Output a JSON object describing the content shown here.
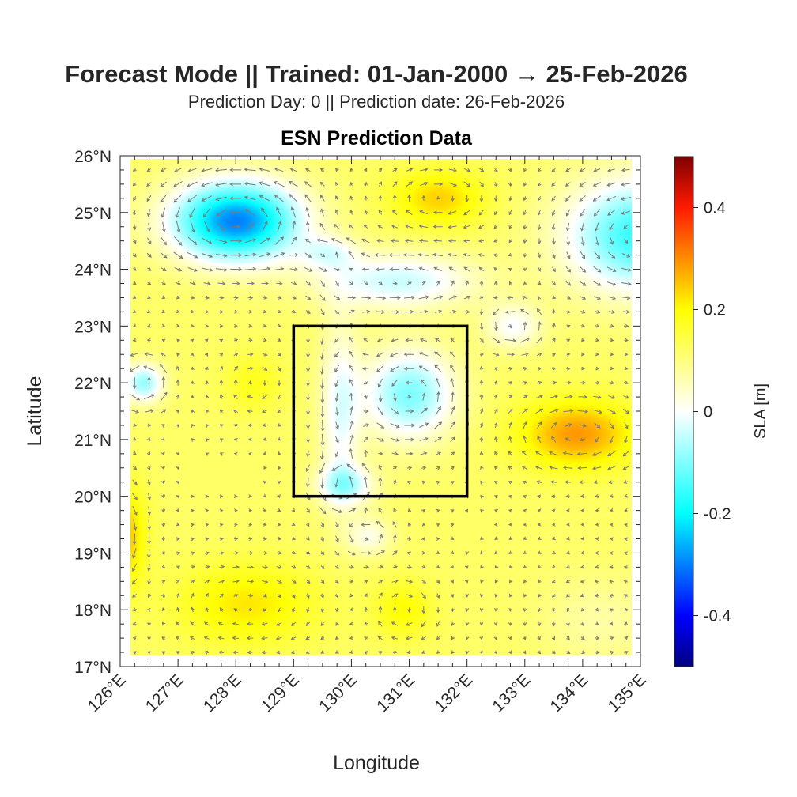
{
  "header": {
    "title": "Forecast Mode || Trained: 01-Jan-2000 → 25-Feb-2026",
    "subtitle": "Prediction Day: 0 || Prediction date: 26-Feb-2026"
  },
  "chart_data": {
    "type": "heatmap",
    "title": "ESN Prediction Data",
    "xlabel": "Longitude",
    "ylabel": "Latitude",
    "xlim": [
      126,
      135
    ],
    "ylim": [
      17,
      26
    ],
    "x_ticks": [
      126,
      127,
      128,
      129,
      130,
      131,
      132,
      133,
      134,
      135
    ],
    "x_tick_labels": [
      "126°E",
      "127°E",
      "128°E",
      "129°E",
      "130°E",
      "131°E",
      "132°E",
      "133°E",
      "134°E",
      "135°E"
    ],
    "y_ticks": [
      26,
      25,
      24,
      23,
      22,
      21,
      20,
      19,
      18,
      17
    ],
    "y_tick_labels": [
      "26°N",
      "25°N",
      "24°N",
      "23°N",
      "22°N",
      "21°N",
      "20°N",
      "19°N",
      "18°N",
      "17°N"
    ],
    "data_extent": {
      "lon": [
        126.18,
        134.85
      ],
      "lat": [
        17.2,
        25.95
      ]
    },
    "sla_field": {
      "units": "m",
      "background": 0.12,
      "features": [
        {
          "name": "cyclonic eddy NW",
          "lon": 128.0,
          "lat": 24.85,
          "amp": -0.42,
          "rlon": 1.1,
          "rlat": 0.7
        },
        {
          "name": "anticyclonic eddy N",
          "lon": 131.5,
          "lat": 25.25,
          "amp": 0.12,
          "rlon": 0.8,
          "rlat": 0.5
        },
        {
          "name": "cyclonic eddy NE",
          "lon": 135.0,
          "lat": 24.6,
          "amp": -0.28,
          "rlon": 1.3,
          "rlat": 1.0
        },
        {
          "name": "low north-central",
          "lon": 130.8,
          "lat": 23.8,
          "amp": -0.16,
          "rlon": 1.4,
          "rlat": 0.5
        },
        {
          "name": "low box center",
          "lon": 131.0,
          "lat": 21.8,
          "amp": -0.22,
          "rlon": 0.8,
          "rlat": 0.8
        },
        {
          "name": "low strip",
          "lon": 129.8,
          "lat": 21.5,
          "amp": -0.13,
          "rlon": 0.35,
          "rlat": 1.6
        },
        {
          "name": "low box south",
          "lon": 129.9,
          "lat": 20.2,
          "amp": -0.16,
          "rlon": 0.5,
          "rlat": 0.35
        },
        {
          "name": "small cyclone W",
          "lon": 126.4,
          "lat": 22.0,
          "amp": -0.2,
          "rlon": 0.35,
          "rlat": 0.35
        },
        {
          "name": "small high",
          "lon": 128.3,
          "lat": 22.0,
          "amp": 0.06,
          "rlon": 0.5,
          "rlat": 0.5
        },
        {
          "name": "anticyclonic eddy E",
          "lon": 133.9,
          "lat": 21.1,
          "amp": 0.17,
          "rlon": 1.0,
          "rlat": 0.6
        },
        {
          "name": "low E",
          "lon": 132.8,
          "lat": 23.0,
          "amp": -0.12,
          "rlon": 0.5,
          "rlat": 0.4
        },
        {
          "name": "high W edge",
          "lon": 126.1,
          "lat": 19.3,
          "amp": 0.13,
          "rlon": 0.35,
          "rlat": 0.9
        },
        {
          "name": "high SW",
          "lon": 128.2,
          "lat": 18.1,
          "amp": 0.1,
          "rlon": 1.2,
          "rlat": 0.7
        },
        {
          "name": "high S",
          "lon": 130.9,
          "lat": 18.0,
          "amp": 0.08,
          "rlon": 0.5,
          "rlat": 0.5
        },
        {
          "name": "low S",
          "lon": 130.3,
          "lat": 19.3,
          "amp": -0.1,
          "rlon": 0.4,
          "rlat": 0.35
        },
        {
          "name": "weak low SE",
          "lon": 134.3,
          "lat": 17.8,
          "amp": -0.05,
          "rlon": 1.0,
          "rlat": 0.8
        },
        {
          "name": "low N gap",
          "lon": 129.6,
          "lat": 24.3,
          "amp": -0.1,
          "rlon": 0.5,
          "rlat": 0.3
        }
      ]
    },
    "quiver": {
      "spacing_deg": 0.25,
      "color": "#7a7a7a",
      "derived_from": "geostrophic"
    },
    "region_box": {
      "lon": [
        129,
        132
      ],
      "lat": [
        20,
        23
      ],
      "color": "#000000"
    },
    "colorbar": {
      "label": "SLA [m]",
      "clim": [
        -0.5,
        0.5
      ],
      "ticks": [
        0.4,
        0.2,
        0,
        -0.2,
        -0.4
      ],
      "tick_labels": [
        "0.4",
        "0.2",
        "0",
        "-0.2",
        "-0.4"
      ],
      "colormap_stops": [
        {
          "v": -0.5,
          "c": "#000080"
        },
        {
          "v": -0.4,
          "c": "#0000ff"
        },
        {
          "v": -0.3,
          "c": "#0080ff"
        },
        {
          "v": -0.2,
          "c": "#00ffff"
        },
        {
          "v": 0,
          "c": "#ffffff"
        },
        {
          "v": 0.2,
          "c": "#ffff00"
        },
        {
          "v": 0.3,
          "c": "#ff8c00"
        },
        {
          "v": 0.4,
          "c": "#ff1a00"
        },
        {
          "v": 0.5,
          "c": "#800000"
        }
      ]
    }
  }
}
